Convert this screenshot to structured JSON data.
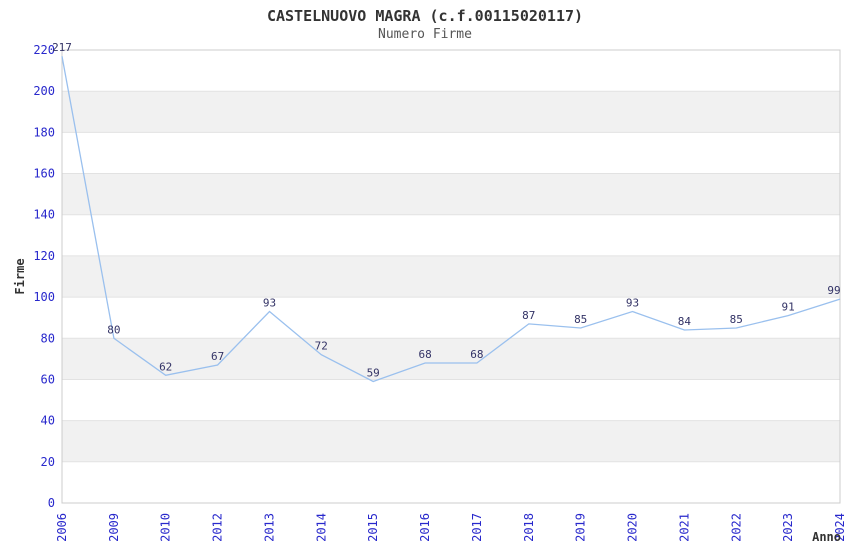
{
  "chart_data": {
    "type": "line",
    "title": "CASTELNUOVO MAGRA (c.f.00115020117)",
    "subtitle": "Numero Firme",
    "xlabel": "Anno",
    "ylabel": "Firme",
    "categories": [
      "2006",
      "2009",
      "2010",
      "2012",
      "2013",
      "2014",
      "2015",
      "2016",
      "2017",
      "2018",
      "2019",
      "2020",
      "2021",
      "2022",
      "2023",
      "2024"
    ],
    "values": [
      217,
      80,
      62,
      67,
      93,
      72,
      59,
      68,
      68,
      87,
      85,
      93,
      84,
      85,
      91,
      99
    ],
    "ylim": [
      0,
      220
    ],
    "ytick_step": 20,
    "ytick_labels": [
      "0",
      "20",
      "40",
      "60",
      "80",
      "100",
      "120",
      "140",
      "160",
      "180",
      "200",
      "220"
    ],
    "grid": "alternating-horizontal-bands",
    "legend": "none",
    "point_labels_visible": true,
    "x_tick_rotation_deg": -90,
    "colors": {
      "line": "#9ac0ee",
      "band": "#f1f1f1",
      "grid": "#e2e2e2",
      "border": "#cccccc",
      "tick": "#2828cc",
      "value_label": "#333366",
      "title": "#333333",
      "subtitle": "#555555",
      "axis_label": "#333333",
      "background": "#ffffff"
    }
  }
}
